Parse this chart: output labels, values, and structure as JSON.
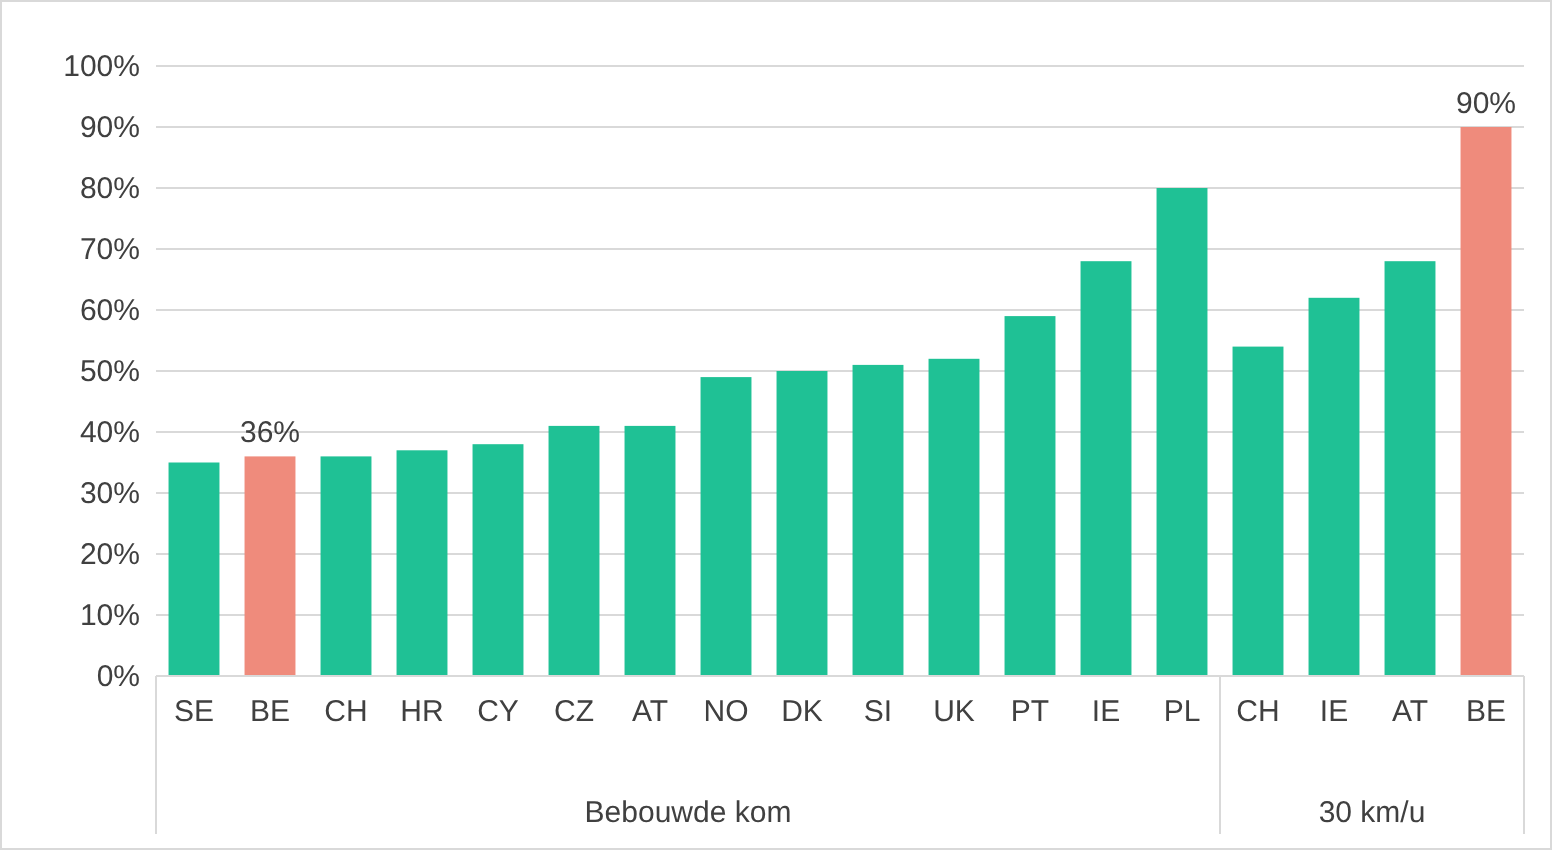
{
  "chart_data": {
    "type": "bar",
    "categories": [
      "SE",
      "BE",
      "CH",
      "HR",
      "CY",
      "CZ",
      "AT",
      "NO",
      "DK",
      "SI",
      "UK",
      "PT",
      "IE",
      "PL",
      "CH",
      "IE",
      "AT",
      "BE"
    ],
    "values": [
      35,
      36,
      36,
      37,
      38,
      41,
      41,
      49,
      50,
      51,
      52,
      59,
      68,
      80,
      54,
      62,
      68,
      90
    ],
    "colors": [
      "#1fc195",
      "#ef8b7c",
      "#1fc195",
      "#1fc195",
      "#1fc195",
      "#1fc195",
      "#1fc195",
      "#1fc195",
      "#1fc195",
      "#1fc195",
      "#1fc195",
      "#1fc195",
      "#1fc195",
      "#1fc195",
      "#1fc195",
      "#1fc195",
      "#1fc195",
      "#ef8b7c"
    ],
    "value_labels": [
      null,
      "36%",
      null,
      null,
      null,
      null,
      null,
      null,
      null,
      null,
      null,
      null,
      null,
      null,
      null,
      null,
      null,
      "90%"
    ],
    "ylim": [
      0,
      100
    ],
    "yticks": [
      {
        "value": 0,
        "label": "0%"
      },
      {
        "value": 10,
        "label": "10%"
      },
      {
        "value": 20,
        "label": "20%"
      },
      {
        "value": 30,
        "label": "30%"
      },
      {
        "value": 40,
        "label": "40%"
      },
      {
        "value": 50,
        "label": "50%"
      },
      {
        "value": 60,
        "label": "60%"
      },
      {
        "value": 70,
        "label": "70%"
      },
      {
        "value": 80,
        "label": "80%"
      },
      {
        "value": 90,
        "label": "90%"
      },
      {
        "value": 100,
        "label": "100%"
      }
    ],
    "grid": "y",
    "annotations": [
      "Bebouwde kom",
      "30 km/u"
    ]
  }
}
